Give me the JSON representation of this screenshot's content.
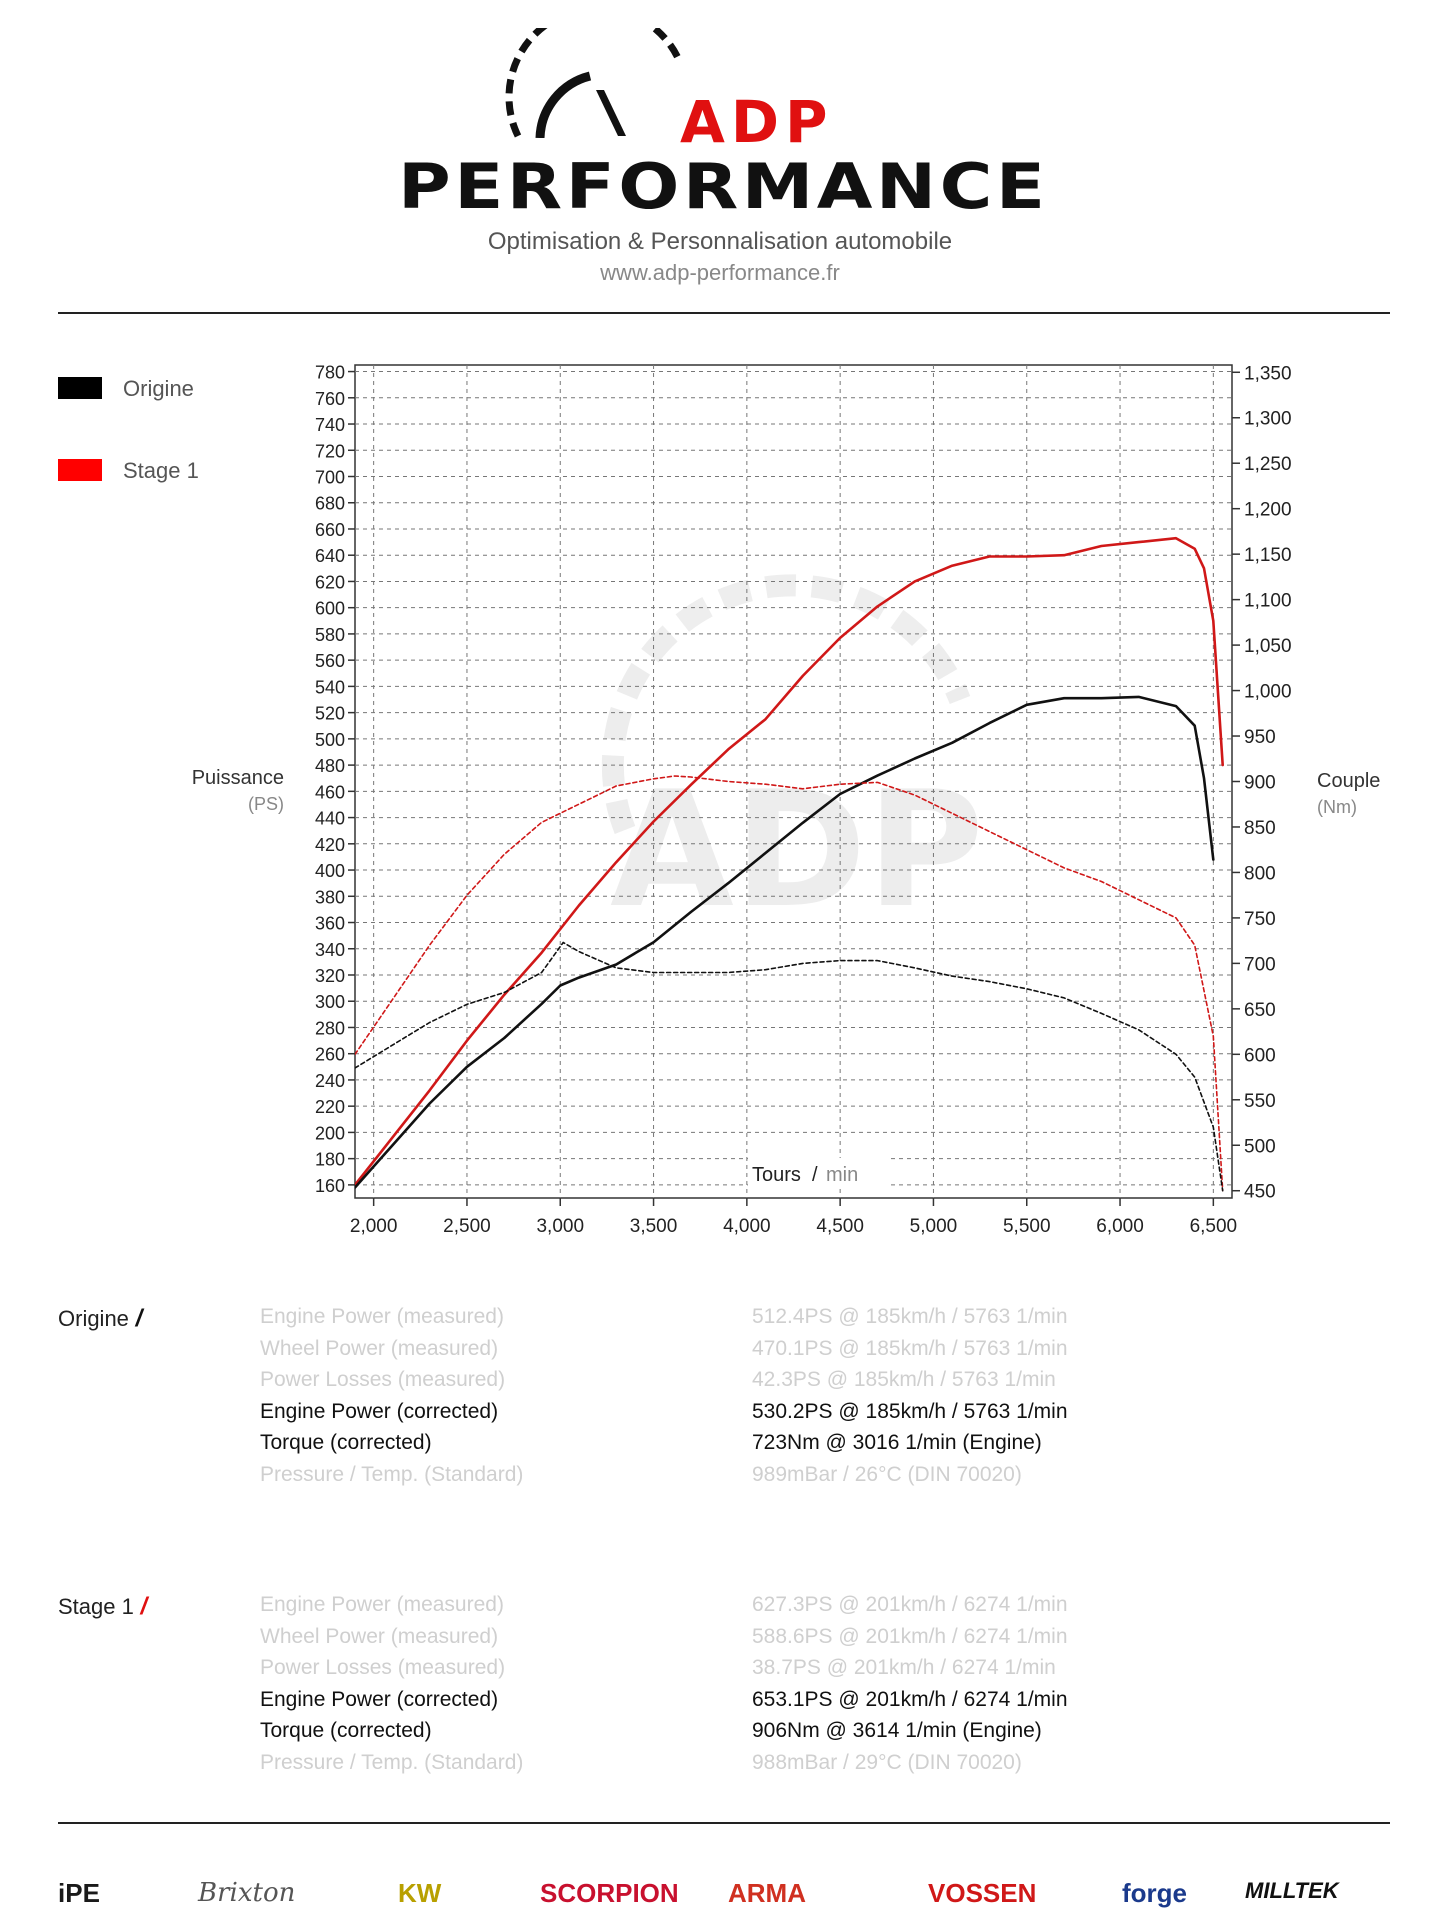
{
  "header": {
    "brand_line1": "ADP",
    "brand_line2": "PERFORMANCE",
    "tagline": "Optimisation & Personnalisation automobile",
    "website": "www.adp-performance.fr"
  },
  "legend": [
    {
      "label": "Origine",
      "color": "#000000"
    },
    {
      "label": "Stage 1",
      "color": "#ff0000"
    }
  ],
  "axes": {
    "left_title": "Puissance",
    "left_unit": "(PS)",
    "right_title": "Couple",
    "right_unit": "(Nm)",
    "x_title": "Tours",
    "x_unit": "min"
  },
  "chart_data": {
    "type": "line",
    "xlabel": "Tours / min",
    "ylabel": "Puissance (PS)",
    "y2label": "Couple (Nm)",
    "xlim": [
      1900,
      6600
    ],
    "ylim": [
      150,
      785
    ],
    "y2lim": [
      442,
      1358
    ],
    "xticks": [
      2000,
      2500,
      3000,
      3500,
      4000,
      4500,
      5000,
      5500,
      6000,
      6500
    ],
    "xtick_labels": [
      "2,000",
      "2,500",
      "3,000",
      "3,500",
      "4,000",
      "4,500",
      "5,000",
      "5,500",
      "6,000",
      "6,500"
    ],
    "yticks": [
      160,
      180,
      200,
      220,
      240,
      260,
      280,
      300,
      320,
      340,
      360,
      380,
      400,
      420,
      440,
      460,
      480,
      500,
      520,
      540,
      560,
      580,
      600,
      620,
      640,
      660,
      680,
      700,
      720,
      740,
      760,
      780
    ],
    "y2ticks": [
      450,
      500,
      550,
      600,
      650,
      700,
      750,
      800,
      850,
      900,
      950,
      1000,
      1050,
      1100,
      1150,
      1200,
      1250,
      1300,
      1350
    ],
    "y2tick_labels": [
      "450",
      "500",
      "550",
      "600",
      "650",
      "700",
      "750",
      "800",
      "850",
      "900",
      "950",
      "1,000",
      "1,050",
      "1,100",
      "1,150",
      "1,200",
      "1,250",
      "1,300",
      "1,350"
    ],
    "grid": true,
    "series": [
      {
        "name": "Stage 1",
        "measure": "power",
        "axis": "left",
        "color": "#d01818",
        "style": "solid",
        "x": [
          1900,
          2100,
          2300,
          2500,
          2700,
          2900,
          3100,
          3300,
          3500,
          3700,
          3900,
          4100,
          4300,
          4500,
          4700,
          4900,
          5100,
          5300,
          5500,
          5700,
          5900,
          6100,
          6300,
          6400,
          6450,
          6500,
          6550
        ],
        "y": [
          160,
          196,
          232,
          270,
          305,
          337,
          373,
          406,
          437,
          465,
          492,
          515,
          548,
          577,
          601,
          620,
          632,
          639,
          639,
          640,
          647,
          650,
          653,
          645,
          630,
          590,
          480
        ]
      },
      {
        "name": "Origine",
        "measure": "power",
        "axis": "left",
        "color": "#111111",
        "style": "solid",
        "x": [
          1900,
          2100,
          2300,
          2500,
          2700,
          2900,
          3000,
          3100,
          3300,
          3500,
          3700,
          3900,
          4100,
          4300,
          4500,
          4700,
          4900,
          5100,
          5300,
          5500,
          5700,
          5900,
          6100,
          6300,
          6400,
          6450,
          6500
        ],
        "y": [
          158,
          190,
          222,
          250,
          272,
          298,
          312,
          318,
          328,
          345,
          368,
          390,
          413,
          436,
          458,
          472,
          485,
          497,
          512,
          526,
          531,
          531,
          532,
          525,
          510,
          470,
          408
        ]
      },
      {
        "name": "Stage 1",
        "measure": "torque",
        "axis": "right",
        "color": "#d01818",
        "style": "dashed",
        "x": [
          1900,
          2100,
          2300,
          2500,
          2700,
          2900,
          3100,
          3300,
          3500,
          3614,
          3700,
          3900,
          4100,
          4300,
          4500,
          4700,
          4900,
          5100,
          5300,
          5500,
          5700,
          5900,
          6100,
          6300,
          6400,
          6500,
          6550
        ],
        "y": [
          600,
          660,
          720,
          775,
          820,
          855,
          875,
          895,
          903,
          906,
          905,
          900,
          897,
          892,
          897,
          899,
          885,
          865,
          845,
          825,
          805,
          790,
          770,
          750,
          720,
          620,
          450
        ]
      },
      {
        "name": "Origine",
        "measure": "torque",
        "axis": "right",
        "color": "#111111",
        "style": "dashed",
        "x": [
          1900,
          2100,
          2300,
          2500,
          2700,
          2900,
          3016,
          3100,
          3300,
          3500,
          3700,
          3900,
          4100,
          4300,
          4500,
          4700,
          4900,
          5100,
          5300,
          5500,
          5700,
          5900,
          6100,
          6300,
          6400,
          6500,
          6550
        ],
        "y": [
          585,
          610,
          635,
          655,
          668,
          690,
          723,
          713,
          695,
          690,
          690,
          690,
          693,
          700,
          703,
          703,
          695,
          686,
          680,
          672,
          662,
          645,
          627,
          600,
          575,
          520,
          450
        ]
      }
    ]
  },
  "results": [
    {
      "name": "Origine",
      "slash_color": "#111111",
      "rows": [
        {
          "label": "Engine Power (measured)",
          "value": "512.4PS @ 185km/h / 5763 1/min",
          "emphasis": false
        },
        {
          "label": "Wheel Power (measured)",
          "value": "470.1PS @ 185km/h / 5763 1/min",
          "emphasis": false
        },
        {
          "label": "Power Losses (measured)",
          "value": "42.3PS @ 185km/h / 5763 1/min",
          "emphasis": false
        },
        {
          "label": "Engine Power (corrected)",
          "value": "530.2PS @ 185km/h / 5763 1/min",
          "emphasis": true
        },
        {
          "label": "Torque (corrected)",
          "value": "723Nm @ 3016 1/min (Engine)",
          "emphasis": true
        },
        {
          "label": "Pressure / Temp. (Standard)",
          "value": "989mBar / 26°C   (DIN 70020)",
          "emphasis": false
        }
      ]
    },
    {
      "name": "Stage 1",
      "slash_color": "#e01010",
      "rows": [
        {
          "label": "Engine Power (measured)",
          "value": "627.3PS @ 201km/h / 6274 1/min",
          "emphasis": false
        },
        {
          "label": "Wheel Power (measured)",
          "value": "588.6PS @ 201km/h / 6274 1/min",
          "emphasis": false
        },
        {
          "label": "Power Losses (measured)",
          "value": "38.7PS @ 201km/h / 6274 1/min",
          "emphasis": false
        },
        {
          "label": "Engine Power (corrected)",
          "value": "653.1PS @ 201km/h / 6274 1/min",
          "emphasis": true
        },
        {
          "label": "Torque (corrected)",
          "value": "906Nm @ 3614 1/min (Engine)",
          "emphasis": true
        },
        {
          "label": "Pressure / Temp. (Standard)",
          "value": "988mBar / 29°C   (DIN 70020)",
          "emphasis": false
        }
      ]
    }
  ],
  "partners": [
    {
      "name": "iPE",
      "color": "#1a1a1a"
    },
    {
      "name": "Brixton",
      "color": "#555555"
    },
    {
      "name": "KW",
      "color": "#b8a000"
    },
    {
      "name": "SCORPION",
      "color": "#c8102e"
    },
    {
      "name": "ARMA",
      "color": "#d03020"
    },
    {
      "name": "VOSSEN",
      "color": "#d01818"
    },
    {
      "name": "forge",
      "color": "#1b3a8c"
    },
    {
      "name": "MILLTEK",
      "color": "#111111"
    }
  ]
}
